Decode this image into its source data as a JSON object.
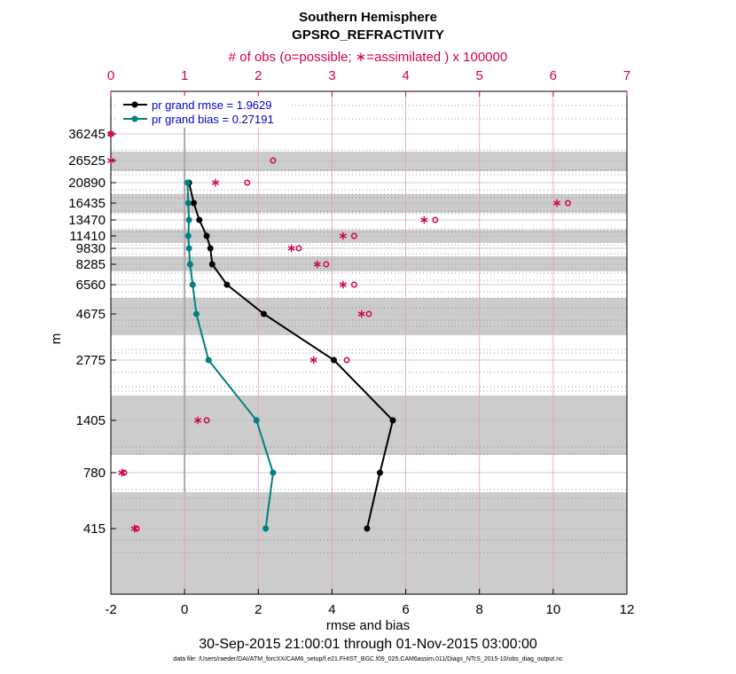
{
  "chart_data": {
    "type": "line",
    "title": "Southern Hemisphere",
    "subtitle": "GPSRO_REFRACTIVITY",
    "top_axis_label": "# of obs (o=possible; ∗=assimilated ) x 100000",
    "xlabel": "rmse and bias",
    "ylabel": "m",
    "date_range": "30-Sep-2015 21:00:01 through 01-Nov-2015 03:00:00",
    "data_file": "data file: /Users/raeder/DAI/ATM_forcXX/CAM6_setup/f.e21.FHIST_BGC.f09_025.CAM6assim.011/Diags_NTrS_2015-10/obs_diag_output.nc",
    "xlim": [
      -2,
      12
    ],
    "xticks": [
      "-2",
      "0",
      "2",
      "4",
      "6",
      "8",
      "10",
      "12"
    ],
    "top_xlim": [
      0,
      7
    ],
    "top_xticks": [
      "0",
      "1",
      "2",
      "3",
      "4",
      "5",
      "6",
      "7"
    ],
    "levels": [
      "36245",
      "26525",
      "20890",
      "16435",
      "13470",
      "11410",
      "9830",
      "8285",
      "6560",
      "4675",
      "2775",
      "1405",
      "780",
      "415"
    ],
    "series": [
      {
        "name": "pr grand rmse",
        "legend": "pr grand rmse = 1.9629",
        "color": "#000000",
        "values": [
          null,
          null,
          0.12,
          0.25,
          0.4,
          0.6,
          0.7,
          0.75,
          1.15,
          2.15,
          4.05,
          5.65,
          5.3,
          4.95
        ]
      },
      {
        "name": "pr grand bias",
        "legend": "pr grand bias = 0.27191",
        "color": "#008080",
        "values": [
          null,
          null,
          0.08,
          0.1,
          0.12,
          0.1,
          0.12,
          0.15,
          0.22,
          0.32,
          0.65,
          1.95,
          2.4,
          2.2
        ]
      }
    ],
    "obs_possible": [
      0.0,
      2.2,
      1.85,
      6.2,
      4.4,
      3.3,
      2.55,
      2.92,
      3.3,
      3.5,
      3.2,
      1.3,
      0.18,
      0.35
    ],
    "obs_assimilated": [
      0.0,
      0.0,
      1.42,
      6.05,
      4.25,
      3.15,
      2.45,
      2.8,
      3.15,
      3.4,
      2.75,
      1.18,
      0.15,
      0.32
    ],
    "colors": {
      "obs": "#d1004e",
      "bias_line": "#aaaaaa",
      "band": "#cccccc",
      "vgrid": "#e0a0b8"
    }
  }
}
